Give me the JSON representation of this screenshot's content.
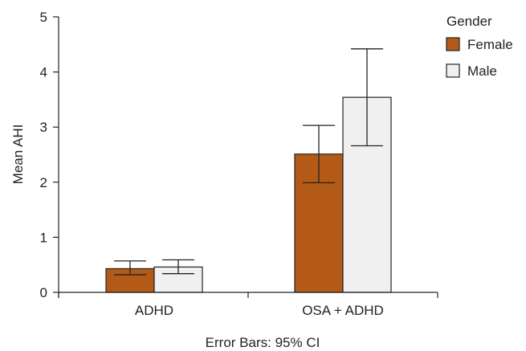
{
  "chart_data": {
    "type": "bar",
    "categories": [
      "ADHD",
      "OSA + ADHD"
    ],
    "series": [
      {
        "name": "Female",
        "color": "#B35A17",
        "values": [
          0.43,
          2.51
        ],
        "ci_low": [
          0.32,
          1.99
        ],
        "ci_high": [
          0.57,
          3.03
        ]
      },
      {
        "name": "Male",
        "color": "#F0F0F0",
        "values": [
          0.46,
          3.54
        ],
        "ci_low": [
          0.34,
          2.66
        ],
        "ci_high": [
          0.59,
          4.42
        ]
      }
    ],
    "ylabel": "Mean AHI",
    "xlabel": "Error Bars: 95% CI",
    "yticks": [
      0,
      1,
      2,
      3,
      4,
      5
    ],
    "ylim": [
      0,
      5
    ],
    "legend_title": "Gender",
    "legend_position": "top-right",
    "grid": false
  }
}
